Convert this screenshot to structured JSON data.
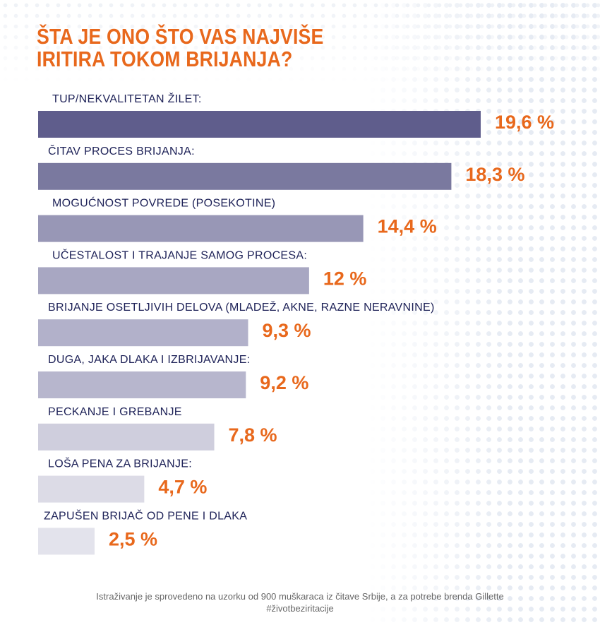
{
  "title": "ŠTA JE ONO ŠTO VAS NAJVIŠE IRITIRA TOKOM BRIJANJA?",
  "chart_data": {
    "type": "bar",
    "orientation": "horizontal",
    "title": "ŠTA JE ONO ŠTO VAS NAJVIŠE IRITIRA TOKOM BRIJANJA?",
    "categories": [
      "TUP/NEKVALITETAN ŽILET:",
      "ČITAV PROCES BRIJANJA:",
      "MOGUĆNOST POVREDE (POSEKOTINE)",
      "UČESTALOST I TRAJANJE SAMOG PROCESA:",
      "BRIJANJE OSETLJIVIH DELOVA (MLADEŽ, AKNE, RAZNE NERAVNINE)",
      "DUGA, JAKA DLAKA I IZBRIJAVANJE:",
      "PECKANJE I GREBANJE",
      "LOŠA PENA ZA BRIJANJE:",
      "ZAPUŠEN BRIJAČ OD PENE I DLAKA"
    ],
    "values": [
      19.6,
      18.3,
      14.4,
      12,
      9.3,
      9.2,
      7.8,
      4.7,
      2.5
    ],
    "value_labels": [
      "19,6 %",
      "18,3 %",
      "14,4 %",
      "12 %",
      "9,3 %",
      "9,2 %",
      "7,8 %",
      "4,7 %",
      "2,5 %"
    ],
    "bar_colors": [
      "#5f5d8c",
      "#7a799f",
      "#9897b6",
      "#a8a7c2",
      "#b2b1ca",
      "#b7b6cd",
      "#cfcedd",
      "#dcdbe6",
      "#e3e3ec"
    ],
    "value_label_color": "#e8681c",
    "xlim": [
      0,
      19.6
    ],
    "xlabel": "",
    "ylabel": "",
    "grid": false,
    "legend": "none"
  },
  "footnote": {
    "line1": "Istraživanje je sprovedeno na uzorku od 900 muškaraca iz čitave Srbije, a za potrebe brenda Gillette",
    "line2": "#životbeziritacije"
  }
}
